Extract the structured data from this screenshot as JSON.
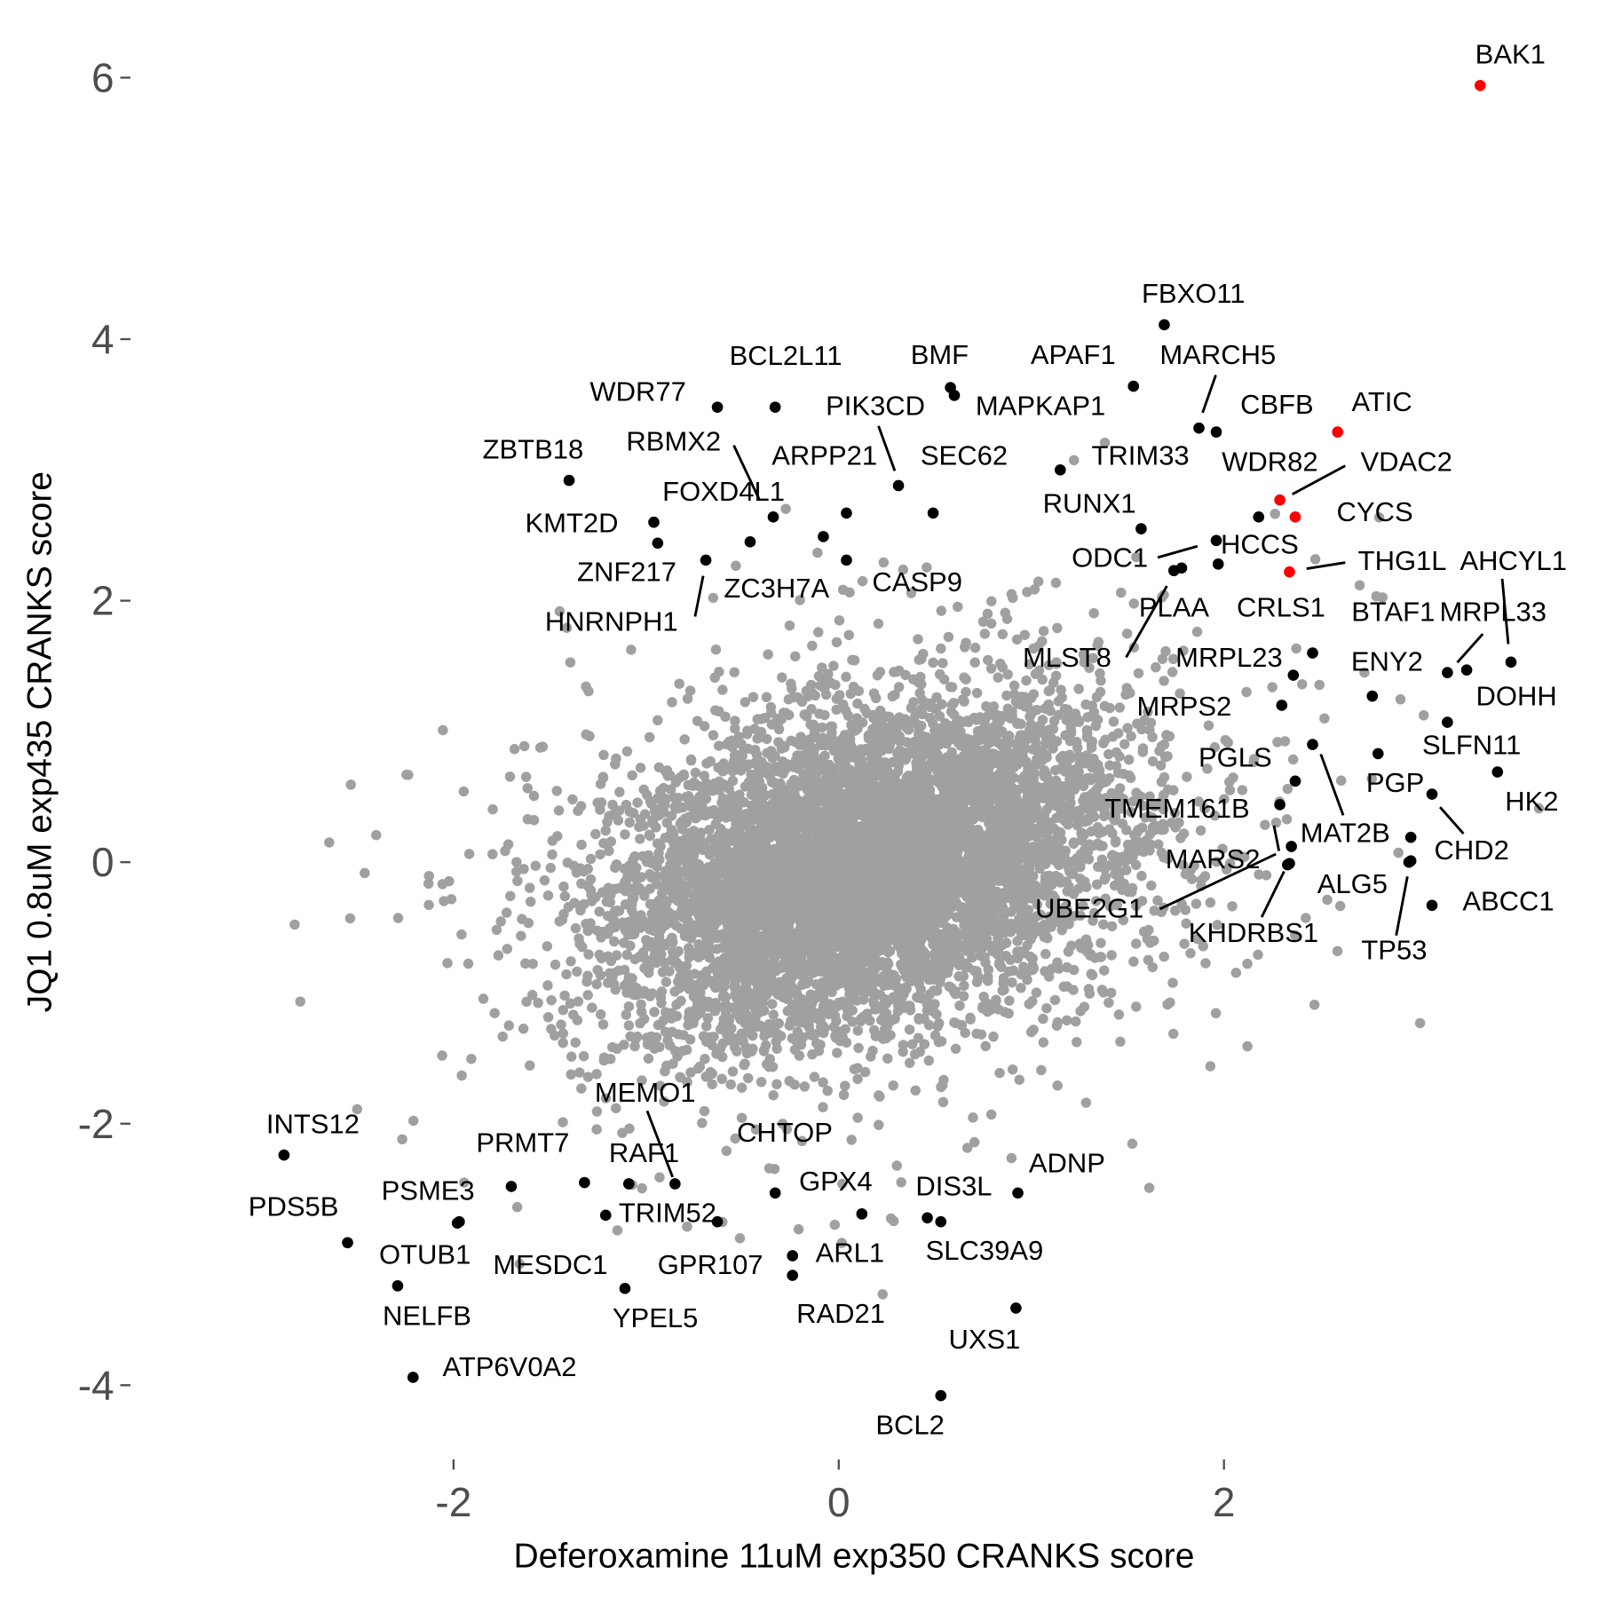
{
  "chart_data": {
    "type": "scatter",
    "title": "",
    "xlabel": "Deferoxamine 11uM exp350 CRANKS score",
    "ylabel": "JQ1 0.8uM exp435 CRANKS score",
    "xlim": [
      -3.67,
      3.9
    ],
    "ylim": [
      -4.55,
      6.6
    ],
    "xticks": [
      -2,
      0,
      2
    ],
    "yticks": [
      -4,
      -2,
      0,
      2,
      4,
      6
    ],
    "grid": false,
    "colors": {
      "background": "#a0a0a0",
      "highlight": "#000000",
      "top_hit": "#ff0000"
    },
    "labeled_points": [
      {
        "gene": "BAK1",
        "x": 3.33,
        "y": 5.94,
        "color": "red"
      },
      {
        "gene": "FBXO11",
        "x": 1.69,
        "y": 4.11,
        "color": "black"
      },
      {
        "gene": "APAF1",
        "x": 1.53,
        "y": 3.64,
        "color": "black"
      },
      {
        "gene": "BMF",
        "x": 0.58,
        "y": 3.63,
        "color": "black"
      },
      {
        "gene": "MAPKAP1",
        "x": 0.6,
        "y": 3.57,
        "color": "black"
      },
      {
        "gene": "MARCH5",
        "x": 1.87,
        "y": 3.32,
        "color": "black"
      },
      {
        "gene": "CBFB",
        "x": 1.96,
        "y": 3.29,
        "color": "black"
      },
      {
        "gene": "ATIC",
        "x": 2.59,
        "y": 3.29,
        "color": "red"
      },
      {
        "gene": "WDR77",
        "x": -0.63,
        "y": 3.48,
        "color": "black"
      },
      {
        "gene": "BCL2L11",
        "x": -0.33,
        "y": 3.48,
        "color": "black"
      },
      {
        "gene": "ZBTB18",
        "x": -1.4,
        "y": 2.92,
        "color": "black"
      },
      {
        "gene": "PIK3CD",
        "x": 0.31,
        "y": 2.88,
        "color": "black"
      },
      {
        "gene": "TRIM33",
        "x": 1.15,
        "y": 3.0,
        "color": "black"
      },
      {
        "gene": "WDR82",
        "x": 2.18,
        "y": 2.64,
        "color": "black"
      },
      {
        "gene": "VDAC2",
        "x": 2.29,
        "y": 2.77,
        "color": "red"
      },
      {
        "gene": "CYCS",
        "x": 2.37,
        "y": 2.64,
        "color": "red"
      },
      {
        "gene": "RBMX2",
        "x": -0.34,
        "y": 2.64,
        "color": "black"
      },
      {
        "gene": "FOXD4L1",
        "x": -0.46,
        "y": 2.45,
        "color": "black"
      },
      {
        "gene": "ARPP21",
        "x": 0.04,
        "y": 2.67,
        "color": "black"
      },
      {
        "gene": "SEC62",
        "x": 0.49,
        "y": 2.67,
        "color": "black"
      },
      {
        "gene": "KMT2D",
        "x": -0.96,
        "y": 2.6,
        "color": "black"
      },
      {
        "gene": "ZNF217",
        "x": -0.94,
        "y": 2.44,
        "color": "black"
      },
      {
        "gene": "HNRNPH1",
        "x": -0.69,
        "y": 2.31,
        "color": "black"
      },
      {
        "gene": "ZC3H7A",
        "x": -0.08,
        "y": 2.49,
        "color": "black"
      },
      {
        "gene": "CASP9",
        "x": 0.04,
        "y": 2.31,
        "color": "black"
      },
      {
        "gene": "RUNX1",
        "x": 1.57,
        "y": 2.55,
        "color": "black"
      },
      {
        "gene": "ODC1",
        "x": 1.96,
        "y": 2.46,
        "color": "black"
      },
      {
        "gene": "HCCS",
        "x": 1.97,
        "y": 2.28,
        "color": "black"
      },
      {
        "gene": "PLAA",
        "x": 1.78,
        "y": 2.25,
        "color": "black"
      },
      {
        "gene": "MLST8",
        "x": 1.74,
        "y": 2.23,
        "color": "black"
      },
      {
        "gene": "THG1L",
        "x": 2.34,
        "y": 2.22,
        "color": "red"
      },
      {
        "gene": "AHCYL1",
        "x": 3.49,
        "y": 1.53,
        "color": "black"
      },
      {
        "gene": "CRLS1",
        "x": 2.46,
        "y": 1.6,
        "color": "black"
      },
      {
        "gene": "BTAF1",
        "x": 3.16,
        "y": 1.45,
        "color": "black"
      },
      {
        "gene": "MRPL33",
        "x": 3.26,
        "y": 1.47,
        "color": "black"
      },
      {
        "gene": "MRPL23",
        "x": 2.36,
        "y": 1.43,
        "color": "black"
      },
      {
        "gene": "ENY2",
        "x": 2.77,
        "y": 1.27,
        "color": "black"
      },
      {
        "gene": "DOHH",
        "x": 3.16,
        "y": 1.07,
        "color": "black"
      },
      {
        "gene": "MRPS2",
        "x": 2.3,
        "y": 1.2,
        "color": "black"
      },
      {
        "gene": "SLFN11",
        "x": 2.8,
        "y": 0.83,
        "color": "black"
      },
      {
        "gene": "PGLS",
        "x": 2.37,
        "y": 0.62,
        "color": "black"
      },
      {
        "gene": "PGP",
        "x": 3.08,
        "y": 0.52,
        "color": "black"
      },
      {
        "gene": "HK2",
        "x": 3.42,
        "y": 0.69,
        "color": "black"
      },
      {
        "gene": "TMEM161B",
        "x": 2.29,
        "y": 0.44,
        "color": "black"
      },
      {
        "gene": "MAT2B",
        "x": 2.46,
        "y": 0.9,
        "color": "black"
      },
      {
        "gene": "CHD2",
        "x": 2.97,
        "y": 0.19,
        "color": "black"
      },
      {
        "gene": "MARS2",
        "x": 2.35,
        "y": 0.12,
        "color": "black"
      },
      {
        "gene": "ALG5",
        "x": 2.97,
        "y": 0.01,
        "color": "black"
      },
      {
        "gene": "UBE2G1",
        "x": 2.34,
        "y": -0.01,
        "color": "black"
      },
      {
        "gene": "ABCC1",
        "x": 3.08,
        "y": -0.33,
        "color": "black"
      },
      {
        "gene": "KHDRBS1",
        "x": 2.33,
        "y": -0.02,
        "color": "black"
      },
      {
        "gene": "TP53",
        "x": 2.96,
        "y": 0.0,
        "color": "black"
      },
      {
        "gene": "INTS12",
        "x": -2.88,
        "y": -2.24,
        "color": "black"
      },
      {
        "gene": "PDS5B",
        "x": -2.55,
        "y": -2.91,
        "color": "black"
      },
      {
        "gene": "PRMT7",
        "x": -1.7,
        "y": -2.48,
        "color": "black"
      },
      {
        "gene": "PSME3",
        "x": -1.97,
        "y": -2.75,
        "color": "black"
      },
      {
        "gene": "OTUB1",
        "x": -1.98,
        "y": -2.76,
        "color": "black"
      },
      {
        "gene": "NELFB",
        "x": -2.29,
        "y": -3.24,
        "color": "black"
      },
      {
        "gene": "ATP6V0A2",
        "x": -2.21,
        "y": -3.94,
        "color": "black"
      },
      {
        "gene": "MEMO1",
        "x": -0.85,
        "y": -2.46,
        "color": "black"
      },
      {
        "gene": "RAF1",
        "x": -1.09,
        "y": -2.46,
        "color": "black"
      },
      {
        "gene": "TRIM52",
        "x": -1.21,
        "y": -2.7,
        "color": "black"
      },
      {
        "gene": "MESDC1",
        "x": -1.32,
        "y": -2.45,
        "color": "black"
      },
      {
        "gene": "YPEL5",
        "x": -1.11,
        "y": -3.26,
        "color": "black"
      },
      {
        "gene": "CHTOP",
        "x": -0.33,
        "y": -2.53,
        "color": "black"
      },
      {
        "gene": "GPX4",
        "x": 0.12,
        "y": -2.69,
        "color": "black"
      },
      {
        "gene": "GPR107",
        "x": -0.63,
        "y": -2.75,
        "color": "black"
      },
      {
        "gene": "ARL1",
        "x": -0.24,
        "y": -3.01,
        "color": "black"
      },
      {
        "gene": "RAD21",
        "x": -0.24,
        "y": -3.16,
        "color": "black"
      },
      {
        "gene": "DIS3L",
        "x": 0.46,
        "y": -2.72,
        "color": "black"
      },
      {
        "gene": "SLC39A9",
        "x": 0.53,
        "y": -2.75,
        "color": "black"
      },
      {
        "gene": "ADNP",
        "x": 0.93,
        "y": -2.53,
        "color": "black"
      },
      {
        "gene": "UXS1",
        "x": 0.92,
        "y": -3.41,
        "color": "black"
      },
      {
        "gene": "BCL2",
        "x": 0.53,
        "y": -4.08,
        "color": "black"
      }
    ]
  }
}
